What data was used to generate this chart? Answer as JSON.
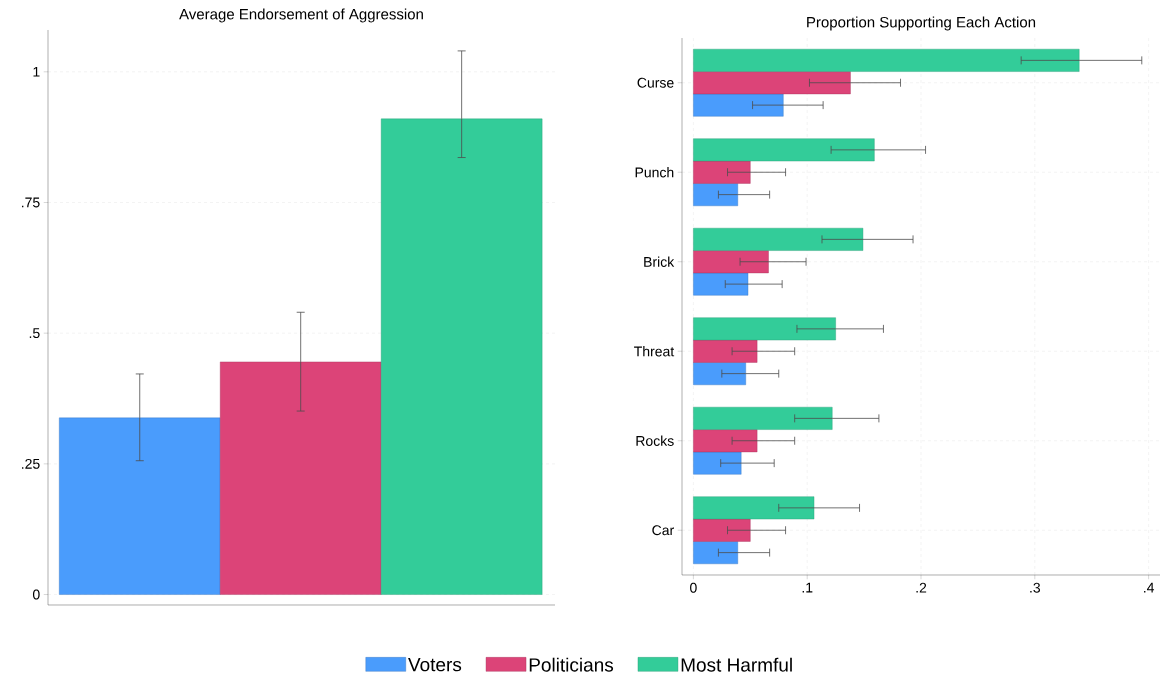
{
  "chart_data": [
    {
      "type": "bar",
      "title": "Average Endorsement of Aggression",
      "categories": [
        null
      ],
      "series": [
        {
          "name": "Voters",
          "color": "#4a9cfc",
          "values": [
            0.338
          ],
          "errors": [
            [
              0.256,
              0.422
            ]
          ]
        },
        {
          "name": "Politicians",
          "color": "#dc4478",
          "values": [
            0.445
          ],
          "errors": [
            [
              0.351,
              0.54
            ]
          ]
        },
        {
          "name": "Most Harmful",
          "color": "#33cc99",
          "values": [
            0.91
          ],
          "errors": [
            [
              0.836,
              1.04
            ]
          ]
        }
      ],
      "ylim": [
        -0.02,
        1.08
      ],
      "yticks": [
        0,
        {
          "value": 0.25,
          "label": ".25"
        },
        {
          "value": 0.5,
          "label": ".5"
        },
        {
          "value": 0.75,
          "label": ".75"
        },
        1
      ],
      "grid": "y",
      "legend": "bottom"
    },
    {
      "type": "bar",
      "orientation": "horizontal",
      "title": "Proportion Supporting Each Action",
      "categories": [
        "Curse",
        "Punch",
        "Brick",
        "Threat",
        "Rocks",
        "Car"
      ],
      "series": [
        {
          "color": "#4a9cfc",
          "values": [
            0.079,
            0.039,
            0.048,
            0.046,
            0.042,
            0.039
          ],
          "errors": [
            [
              0.052,
              0.114
            ],
            [
              0.022,
              0.067
            ],
            [
              0.028,
              0.078
            ],
            [
              0.025,
              0.075
            ],
            [
              0.024,
              0.071
            ],
            [
              0.022,
              0.067
            ]
          ]
        },
        {
          "color": "#dc4478",
          "values": [
            0.138,
            0.05,
            0.066,
            0.056,
            0.056,
            0.05
          ],
          "errors": [
            [
              0.102,
              0.182
            ],
            [
              0.03,
              0.081
            ],
            [
              0.041,
              0.099
            ],
            [
              0.034,
              0.089
            ],
            [
              0.034,
              0.089
            ],
            [
              0.03,
              0.081
            ]
          ]
        },
        {
          "color": "#33cc99",
          "values": [
            0.339,
            0.159,
            0.149,
            0.125,
            0.122,
            0.106
          ],
          "errors": [
            [
              0.288,
              0.394
            ],
            [
              0.121,
              0.204
            ],
            [
              0.113,
              0.193
            ],
            [
              0.091,
              0.167
            ],
            [
              0.089,
              0.163
            ],
            [
              0.075,
              0.146
            ]
          ]
        }
      ],
      "xlim": [
        -0.01,
        0.41
      ],
      "xticks": [
        0,
        {
          "value": 0.1,
          "label": ".1"
        },
        {
          "value": 0.2,
          "label": ".2"
        },
        {
          "value": 0.3,
          "label": ".3"
        },
        {
          "value": 0.4,
          "label": ".4"
        }
      ],
      "grid": true
    }
  ]
}
